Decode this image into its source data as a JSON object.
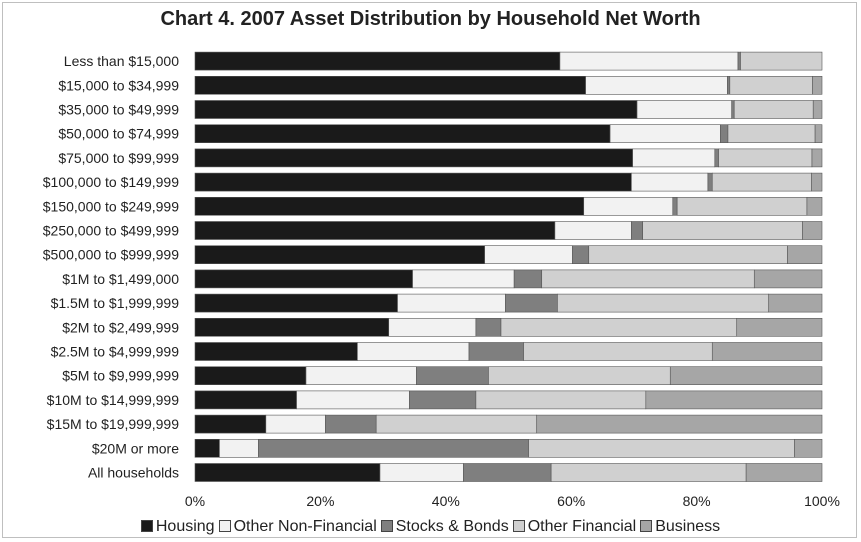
{
  "chart_data": {
    "type": "bar",
    "orientation": "horizontal",
    "stacked": true,
    "title": "Chart 4. 2007 Asset Distribution by Household Net Worth",
    "xlim": [
      0,
      100
    ],
    "x_ticks": [
      "0%",
      "20%",
      "40%",
      "60%",
      "80%",
      "100%"
    ],
    "grid": false,
    "legend_position": "bottom",
    "categories": [
      "Less than $15,000",
      "$15,000 to $34,999",
      "$35,000 to $49,999",
      "$50,000 to $74,999",
      "$75,000 to $99,999",
      "$100,000 to $149,999",
      "$150,000 to $249,999",
      "$250,000 to $499,999",
      "$500,000 to $999,999",
      "$1M to $1,499,000",
      "$1.5M to $1,999,999",
      "$2M to $2,499,999",
      "$2.5M to $4,999,999",
      "$5M to $9,999,999",
      "$10M to $14,999,999",
      "$15M to $19,999,999",
      "$20M or more",
      "All households"
    ],
    "series": [
      {
        "name": "Housing",
        "color": "#1a1a1a",
        "values": [
          58.2,
          62.3,
          70.5,
          66.2,
          69.8,
          69.6,
          62.0,
          57.4,
          46.2,
          34.7,
          32.3,
          30.9,
          25.9,
          17.7,
          16.2,
          11.3,
          3.9,
          29.5
        ]
      },
      {
        "name": "Other Non-Financial",
        "color": "#f2f2f2",
        "values": [
          28.4,
          22.6,
          15.1,
          17.6,
          13.1,
          12.2,
          14.2,
          12.2,
          14.0,
          16.2,
          17.2,
          13.9,
          17.8,
          17.6,
          18.0,
          9.5,
          6.2,
          13.3
        ]
      },
      {
        "name": "Stocks & Bonds",
        "color": "#7f7f7f",
        "values": [
          0.4,
          0.4,
          0.4,
          1.2,
          0.6,
          0.7,
          0.7,
          1.8,
          2.6,
          4.4,
          8.3,
          4.0,
          8.7,
          11.5,
          10.6,
          8.1,
          43.1,
          14.0
        ]
      },
      {
        "name": "Other Financial",
        "color": "#d0d0d0",
        "values": [
          13.0,
          13.2,
          12.6,
          13.9,
          14.9,
          15.8,
          20.7,
          25.5,
          31.7,
          33.9,
          33.7,
          37.6,
          30.1,
          29.0,
          27.1,
          25.6,
          42.4,
          31.1
        ]
      },
      {
        "name": "Business",
        "color": "#a6a6a6",
        "values": [
          0.0,
          1.5,
          1.4,
          1.1,
          1.6,
          1.7,
          2.4,
          3.1,
          5.5,
          10.8,
          8.5,
          13.6,
          17.5,
          24.2,
          28.1,
          45.5,
          4.4,
          12.1
        ]
      }
    ]
  }
}
